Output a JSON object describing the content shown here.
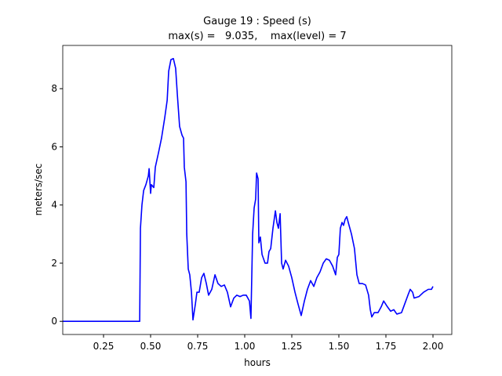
{
  "chart_data": {
    "type": "line",
    "title": "Gauge 19 : Speed (s)",
    "subtitle": "max(s) =   9.035,    max(level) = 7",
    "x_label": "hours",
    "y_label": "meters/sec",
    "xlim": [
      0.0333,
      2.1
    ],
    "ylim": [
      -0.452,
      9.487
    ],
    "xticks": [
      0.25,
      {
        "value": 0.5,
        "label": "0.50"
      },
      0.75,
      {
        "value": 1.0,
        "label": "1.00"
      },
      1.25,
      {
        "value": 1.5,
        "label": "1.50"
      },
      1.75,
      {
        "value": 2.0,
        "label": "2.00"
      }
    ],
    "yticks": [
      0,
      2,
      4,
      6,
      8
    ],
    "grid": false,
    "series": [
      {
        "name": "s",
        "color": "#0000ff",
        "x": [
          0.0333,
          0.442,
          0.446,
          0.454,
          0.463,
          0.475,
          0.488,
          0.492,
          0.5,
          0.504,
          0.517,
          0.525,
          0.542,
          0.558,
          0.575,
          0.588,
          0.596,
          0.608,
          0.621,
          0.633,
          0.642,
          0.654,
          0.667,
          0.675,
          0.679,
          0.688,
          0.692,
          0.7,
          0.708,
          0.717,
          0.725,
          0.738,
          0.746,
          0.758,
          0.771,
          0.783,
          0.796,
          0.808,
          0.825,
          0.842,
          0.858,
          0.875,
          0.892,
          0.908,
          0.925,
          0.942,
          0.958,
          0.975,
          0.992,
          1.008,
          1.025,
          1.033,
          1.042,
          1.05,
          1.058,
          1.063,
          1.071,
          1.075,
          1.083,
          1.092,
          1.108,
          1.121,
          1.129,
          1.138,
          1.15,
          1.163,
          1.171,
          1.179,
          1.188,
          1.196,
          1.204,
          1.217,
          1.233,
          1.25,
          1.267,
          1.283,
          1.3,
          1.317,
          1.333,
          1.35,
          1.367,
          1.383,
          1.4,
          1.417,
          1.433,
          1.45,
          1.467,
          1.483,
          1.492,
          1.5,
          1.508,
          1.517,
          1.525,
          1.533,
          1.542,
          1.55,
          1.567,
          1.583,
          1.596,
          1.608,
          1.625,
          1.642,
          1.658,
          1.667,
          1.675,
          1.688,
          1.708,
          1.725,
          1.738,
          1.758,
          1.775,
          1.792,
          1.808,
          1.833,
          1.85,
          1.867,
          1.879,
          1.892,
          1.9,
          1.925,
          1.95,
          1.975,
          1.992,
          2.0
        ],
        "values": [
          0,
          0,
          3.2,
          4.0,
          4.5,
          4.7,
          5.0,
          5.25,
          4.4,
          4.7,
          4.6,
          5.3,
          5.8,
          6.3,
          7.0,
          7.6,
          8.6,
          9.0,
          9.035,
          8.7,
          7.8,
          6.7,
          6.4,
          6.3,
          5.3,
          4.8,
          3.0,
          1.8,
          1.6,
          1.0,
          0.05,
          0.6,
          1.0,
          1.0,
          1.5,
          1.65,
          1.3,
          0.9,
          1.1,
          1.6,
          1.3,
          1.2,
          1.25,
          1.0,
          0.5,
          0.8,
          0.9,
          0.85,
          0.9,
          0.9,
          0.7,
          0.1,
          3.0,
          3.9,
          4.2,
          5.1,
          4.9,
          2.7,
          2.9,
          2.3,
          2.0,
          2.0,
          2.4,
          2.5,
          3.2,
          3.8,
          3.4,
          3.2,
          3.7,
          2.0,
          1.8,
          2.1,
          1.9,
          1.5,
          1.0,
          0.6,
          0.2,
          0.7,
          1.1,
          1.4,
          1.2,
          1.5,
          1.7,
          2.0,
          2.15,
          2.1,
          1.9,
          1.6,
          2.2,
          2.3,
          3.2,
          3.4,
          3.3,
          3.5,
          3.6,
          3.4,
          3.0,
          2.5,
          1.6,
          1.3,
          1.3,
          1.25,
          0.9,
          0.4,
          0.15,
          0.3,
          0.3,
          0.5,
          0.7,
          0.5,
          0.35,
          0.4,
          0.25,
          0.3,
          0.6,
          0.9,
          1.1,
          1.0,
          0.8,
          0.85,
          1.0,
          1.1,
          1.1,
          1.2
        ]
      }
    ]
  }
}
